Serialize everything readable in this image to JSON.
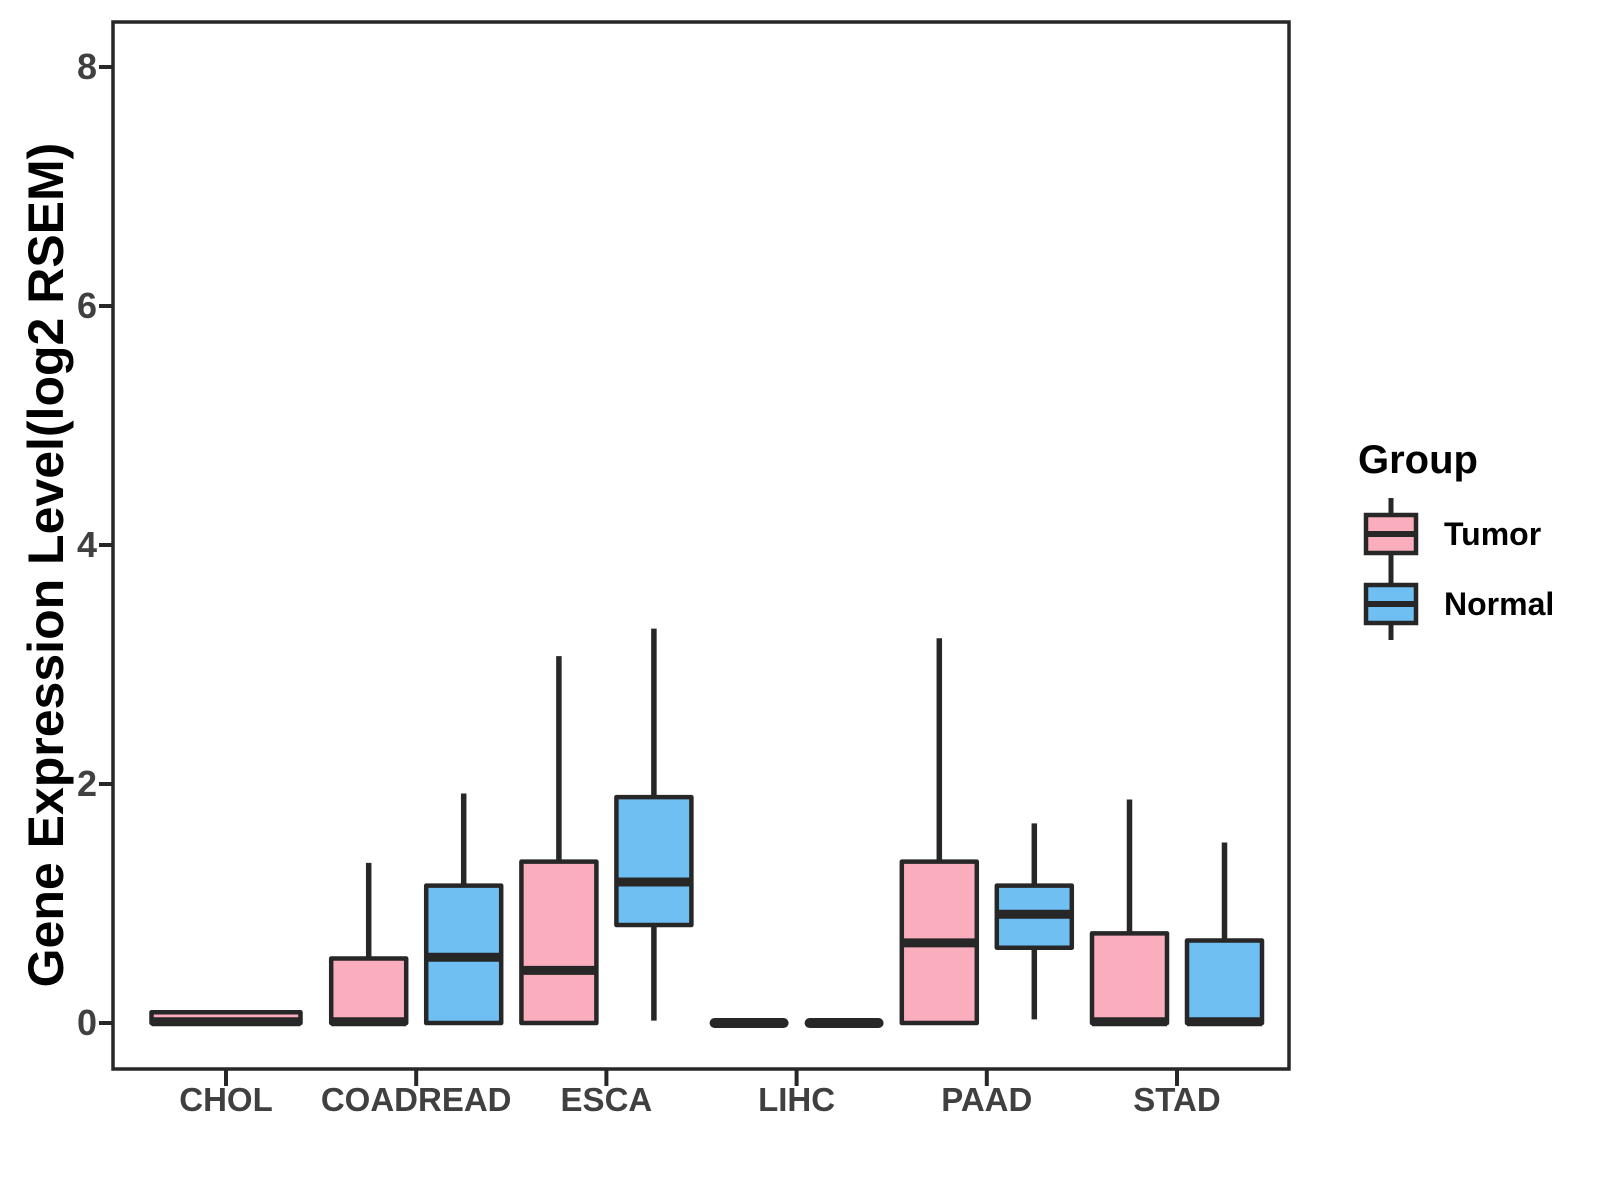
{
  "chart_data": {
    "type": "boxplot",
    "title": "",
    "ylabel": "Gene Expression Level(log2 RSEM)",
    "xlabel": "",
    "ylim": [
      -0.4,
      8.4
    ],
    "yticks": [
      0,
      2,
      4,
      6,
      8
    ],
    "categories": [
      "CHOL",
      "COADREAD",
      "ESCA",
      "LIHC",
      "PAAD",
      "STAD"
    ],
    "grid": false,
    "legend": {
      "title": "Group",
      "position": "right",
      "entries": [
        "Tumor",
        "Normal"
      ]
    },
    "colors": {
      "tumor_fill": "#FAAEBD",
      "normal_fill": "#6FBFF2",
      "line": "#272727",
      "tick_label": "#404040",
      "background": "#FFFFFF"
    },
    "series": [
      {
        "name": "Tumor",
        "color": "#FAAEBD",
        "boxes": [
          {
            "category": "CHOL",
            "min": 0,
            "q1": 0,
            "median": 0.01,
            "q3": 0.09,
            "max": 0.09
          },
          {
            "category": "COADREAD",
            "min": 0,
            "q1": 0,
            "median": 0.01,
            "q3": 0.54,
            "max": 1.34
          },
          {
            "category": "ESCA",
            "min": 0,
            "q1": 0,
            "median": 0.44,
            "q3": 1.35,
            "max": 3.07
          },
          {
            "category": "LIHC",
            "min": 0,
            "q1": 0,
            "median": 0,
            "q3": 0,
            "max": 0
          },
          {
            "category": "PAAD",
            "min": 0,
            "q1": 0,
            "median": 0.67,
            "q3": 1.35,
            "max": 3.22
          },
          {
            "category": "STAD",
            "min": 0,
            "q1": 0,
            "median": 0.01,
            "q3": 0.75,
            "max": 1.87
          }
        ]
      },
      {
        "name": "Normal",
        "color": "#6FBFF2",
        "boxes": [
          null,
          {
            "category": "COADREAD",
            "min": 0,
            "q1": 0,
            "median": 0.55,
            "q3": 1.15,
            "max": 1.92
          },
          {
            "category": "ESCA",
            "min": 0.02,
            "q1": 0.82,
            "median": 1.18,
            "q3": 1.89,
            "max": 3.3
          },
          {
            "category": "LIHC",
            "min": 0,
            "q1": 0,
            "median": 0,
            "q3": 0,
            "max": 0
          },
          {
            "category": "PAAD",
            "min": 0.03,
            "q1": 0.63,
            "median": 0.91,
            "q3": 1.15,
            "max": 1.67
          },
          {
            "category": "STAD",
            "min": 0,
            "q1": 0,
            "median": 0.01,
            "q3": 0.69,
            "max": 1.51
          }
        ]
      }
    ]
  }
}
